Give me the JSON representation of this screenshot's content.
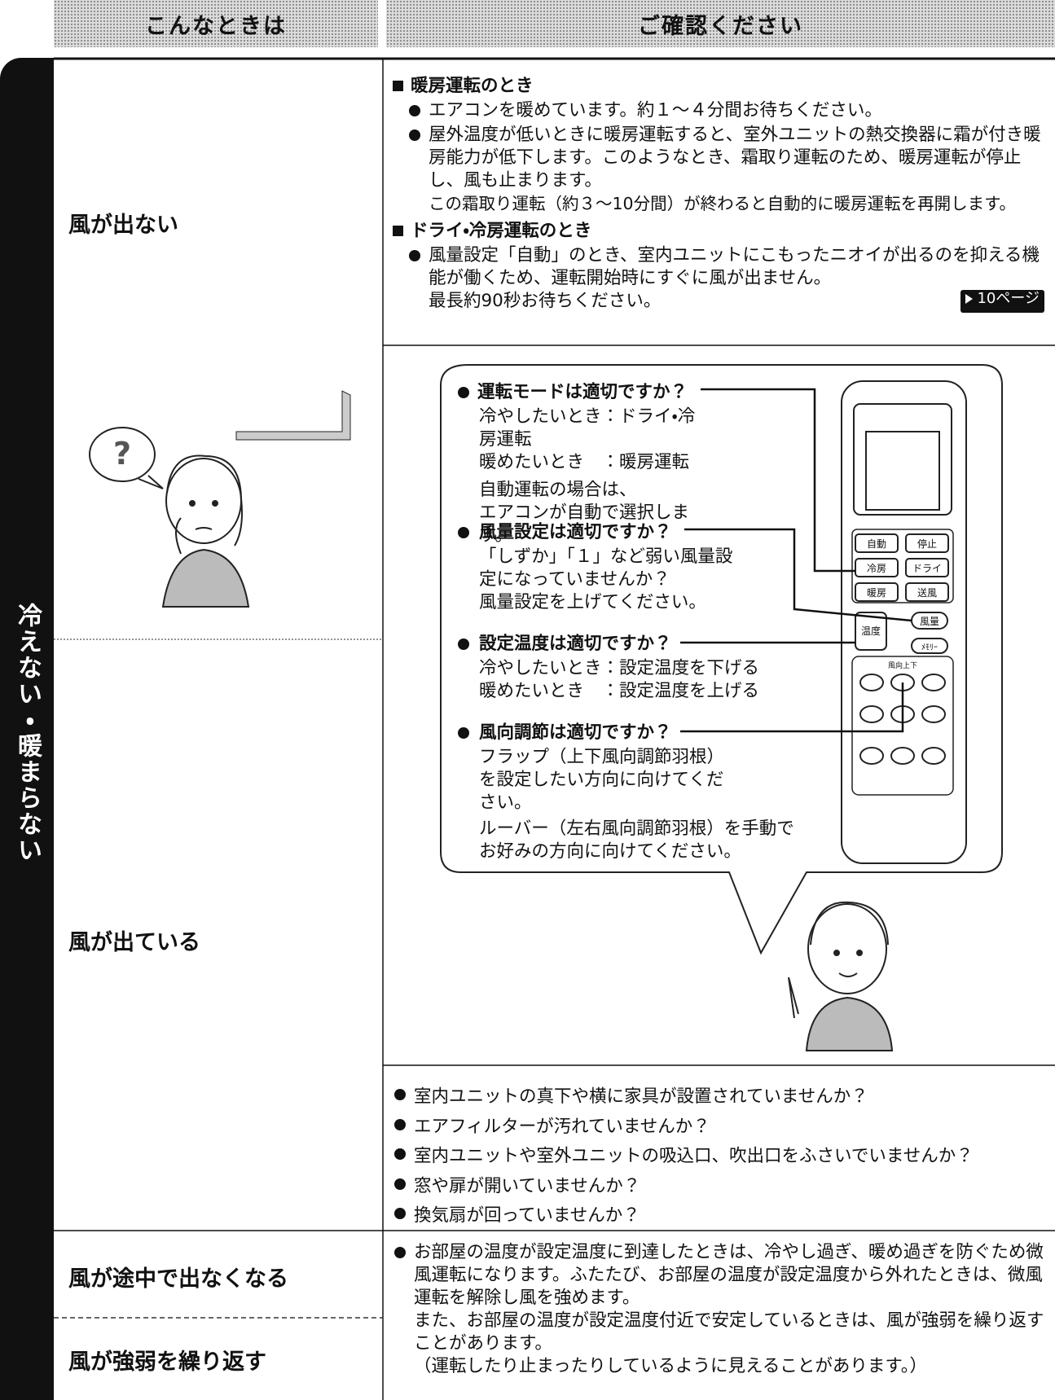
{
  "header": {
    "left": "こんなときは",
    "right": "ご確認ください"
  },
  "category": "冷えない・暖まらない",
  "rows": [
    {
      "symptoms": [
        "風が出ない"
      ],
      "sections": [
        {
          "heading": "暖房運転のとき",
          "items": [
            [
              "エアコンを暖めています。約１～４分間お待ちください。"
            ],
            [
              "屋外温度が低いときに暖房運転すると、室外ユニットの熱交換器に霜が付き暖房能力が低下します。このようなとき、霜取り運転のため、暖房運転が停止し、風も止まります。",
              "この霜取り運転（約３～10分間）が終わると自動的に暖房運転を再開します。"
            ]
          ]
        },
        {
          "heading": "ドライ・冷房運転のとき",
          "items": [
            [
              "風量設定「自動」のとき、室内ユニットにこもったニオイが出るのを抑える機能が働くため、運転開始時にすぐに風が出ません。",
              "最長約90秒お待ちください。"
            ]
          ],
          "page_ref": "10ページ"
        }
      ]
    },
    {
      "symptoms": [
        "風が出ている"
      ],
      "bubble": "?",
      "checks": [
        {
          "question": "運転モードは適切ですか？",
          "lines": [
            "冷やしたいとき：ドライ・冷房運転",
            "暖めたいとき　：暖房運転",
            "自動運転の場合は、",
            "エアコンが自動で選択します。"
          ]
        },
        {
          "question": "風量設定は適切ですか？",
          "lines": [
            "「しずか」「１」など弱い風量設定になっていませんか？",
            "風量設定を上げてください。"
          ]
        },
        {
          "question": "設定温度は適切ですか？",
          "lines": [
            "冷やしたいとき：設定温度を下げる",
            "暖めたいとき　：設定温度を上げる"
          ]
        },
        {
          "question": "風向調節は適切ですか？",
          "lines": [
            "フラップ（上下風向調節羽根）を設定したい方向に向けてください。",
            "ルーバー（左右風向調節羽根）を手動でお好みの方向に向けてください。"
          ]
        }
      ],
      "remote_buttons": [
        "自動",
        "停止",
        "冷房",
        "ドライ",
        "暖房",
        "送風",
        "風量",
        "温度",
        "ﾒﾓﾘｰ",
        "風向上下"
      ],
      "items": [
        "室内ユニットの真下や横に家具が設置されていませんか？",
        "エアフィルターが汚れていませんか？",
        "室内ユニットや室外ユニットの吸込口、吹出口をふさいでいませんか？",
        "窓や扉が開いていませんか？",
        "換気扇が回っていませんか？"
      ]
    },
    {
      "symptoms": [
        "風が途中で出なくなる",
        "風が強弱を繰り返す"
      ],
      "paragraphs": [
        "お部屋の温度が設定温度に到達したときは、冷やし過ぎ、暖め過ぎを防ぐため微風運転になります。ふたたび、お部屋の温度が設定温度から外れたときは、微風運転を解除し風を強めます。",
        "また、お部屋の温度が設定温度付近で安定しているときは、風が強弱を繰り返すことがあります。",
        "（運転したり止まったりしているように見えることがあります。）"
      ]
    }
  ]
}
